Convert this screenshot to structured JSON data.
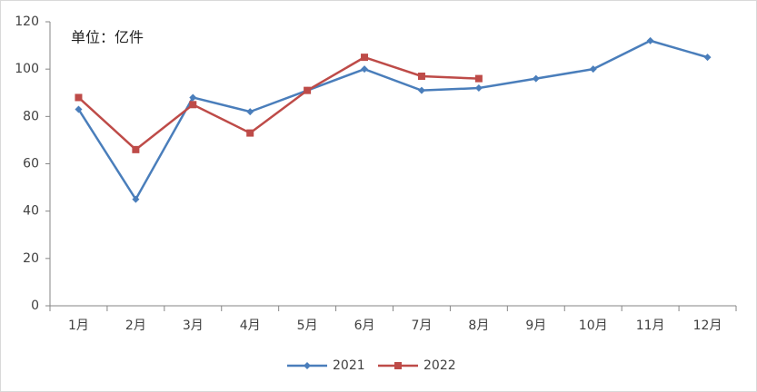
{
  "chart_data": {
    "type": "line",
    "annotation": "单位：亿件",
    "categories": [
      "1月",
      "2月",
      "3月",
      "4月",
      "5月",
      "6月",
      "7月",
      "8月",
      "9月",
      "10月",
      "11月",
      "12月"
    ],
    "series": [
      {
        "name": "2021",
        "color": "#4a7ebb",
        "marker": "diamond",
        "values": [
          83,
          45,
          88,
          82,
          91,
          100,
          91,
          92,
          96,
          100,
          112,
          105
        ]
      },
      {
        "name": "2022",
        "color": "#be4b48",
        "marker": "square",
        "values": [
          88,
          66,
          85,
          73,
          91,
          105,
          97,
          96,
          null,
          null,
          null,
          null
        ]
      }
    ],
    "ylim": [
      0,
      120
    ],
    "yticks": [
      0,
      20,
      40,
      60,
      80,
      100,
      120
    ],
    "grid": false,
    "legend": "bottom"
  }
}
